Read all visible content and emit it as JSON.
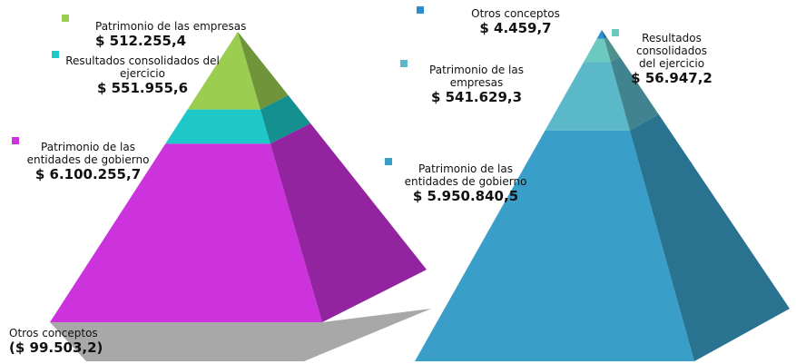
{
  "chart_data": [
    {
      "type": "pyramid",
      "categories": [
        "Patrimonio de las empresas",
        "Resultados consolidados del ejercicio",
        "Patrimonio de las entidades de gobierno",
        "Otros conceptos"
      ],
      "values": [
        512255.4,
        551955.6,
        6100255.7,
        -99503.2
      ],
      "value_labels": [
        "$ 512.255,4",
        "$ 551.955,6",
        "$ 6.100.255,7",
        "($ 99.503,2)"
      ],
      "colors": [
        "#9acd50",
        "#1ec8c8",
        "#cc33dd",
        "#999999"
      ]
    },
    {
      "type": "pyramid",
      "categories": [
        "Otros conceptos",
        "Resultados consolidados del ejercicio",
        "Patrimonio de las empresas",
        "Patrimonio de las entidades de gobierno"
      ],
      "values": [
        4459.7,
        56947.2,
        541629.3,
        5950840.5
      ],
      "value_labels": [
        "$ 4.459,7",
        "$ 56.947,2",
        "$ 541.629,3",
        "$ 5.950.840,5"
      ],
      "colors": [
        "#2a8fd0",
        "#6cc9c0",
        "#5ab8c8",
        "#3a9fc8"
      ]
    }
  ]
}
